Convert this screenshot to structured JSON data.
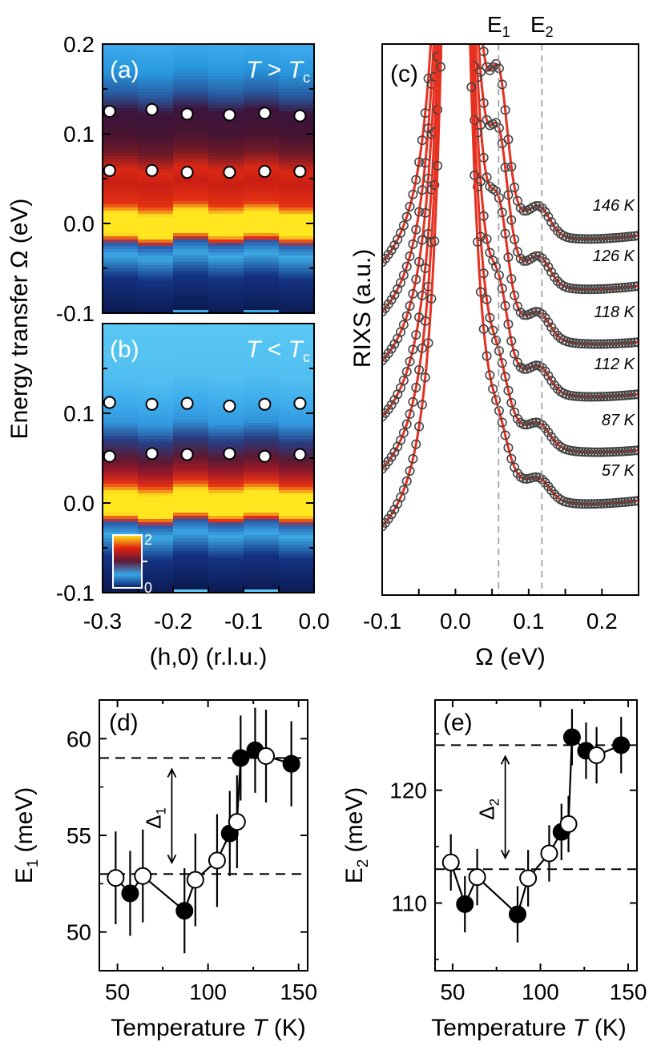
{
  "chart_data": [
    {
      "panel": "(a)",
      "type": "heatmap",
      "annotation": {
        "T": "T",
        "op": " > ",
        "Tc": "T",
        "sub": "c"
      },
      "x_ticks": [
        "-0.3",
        "-0.2",
        "-0.1",
        "0.0"
      ],
      "y_ticks": [
        "0.2",
        "0.1",
        "0.0",
        "-0.1"
      ],
      "xlim": [
        -0.3,
        0.0
      ],
      "ylim": [
        -0.1,
        0.2
      ],
      "column_centers": [
        -0.29,
        -0.23,
        -0.18,
        -0.12,
        -0.07,
        -0.02
      ],
      "points": [
        {
          "x": -0.29,
          "y": 0.125
        },
        {
          "x": -0.23,
          "y": 0.127
        },
        {
          "x": -0.18,
          "y": 0.122
        },
        {
          "x": -0.12,
          "y": 0.121
        },
        {
          "x": -0.07,
          "y": 0.123
        },
        {
          "x": -0.02,
          "y": 0.12
        },
        {
          "x": -0.29,
          "y": 0.059
        },
        {
          "x": -0.23,
          "y": 0.059
        },
        {
          "x": -0.18,
          "y": 0.057
        },
        {
          "x": -0.12,
          "y": 0.057
        },
        {
          "x": -0.07,
          "y": 0.058
        },
        {
          "x": -0.02,
          "y": 0.058
        }
      ]
    },
    {
      "panel": "(b)",
      "type": "heatmap",
      "annotation": {
        "T": "T",
        "op": " < ",
        "Tc": "T",
        "sub": "c"
      },
      "xlabel": "(h,0) (r.l.u.)",
      "x_ticks": [
        "-0.3",
        "-0.2",
        "-0.1",
        "0.0"
      ],
      "y_ticks": [
        "0.1",
        "0.0",
        "-0.1"
      ],
      "xlim": [
        -0.3,
        0.0
      ],
      "ylim": [
        -0.1,
        0.2
      ],
      "colorbar": {
        "max": "2",
        "min": "0"
      },
      "points": [
        {
          "x": -0.29,
          "y": 0.112
        },
        {
          "x": -0.23,
          "y": 0.11
        },
        {
          "x": -0.18,
          "y": 0.111
        },
        {
          "x": -0.12,
          "y": 0.108
        },
        {
          "x": -0.07,
          "y": 0.11
        },
        {
          "x": -0.02,
          "y": 0.111
        },
        {
          "x": -0.29,
          "y": 0.052
        },
        {
          "x": -0.23,
          "y": 0.055
        },
        {
          "x": -0.18,
          "y": 0.054
        },
        {
          "x": -0.12,
          "y": 0.055
        },
        {
          "x": -0.07,
          "y": 0.052
        },
        {
          "x": -0.02,
          "y": 0.054
        }
      ]
    },
    {
      "panel": "(c)",
      "type": "line",
      "xlabel": "Ω (eV)",
      "ylabel": "RIXS (a.u.)",
      "x_ticks": [
        "-0.1",
        "0.0",
        "0.1",
        "0.2"
      ],
      "xlim": [
        -0.1,
        0.25
      ],
      "top_labels": [
        {
          "main": "E",
          "sub": "1",
          "x": 0.059
        },
        {
          "main": "E",
          "sub": "2",
          "x": 0.118
        }
      ],
      "series": [
        {
          "name": "146 K"
        },
        {
          "name": "126 K"
        },
        {
          "name": "118 K"
        },
        {
          "name": "112 K"
        },
        {
          "name": "87 K"
        },
        {
          "name": "57 K"
        }
      ]
    },
    {
      "panel": "(d)",
      "type": "scatter",
      "xlabel": "Temperature T (K)",
      "ylabel": "E1 (meV)",
      "delta": {
        "main": "Δ",
        "sub": "1"
      },
      "x_ticks": [
        "50",
        "100",
        "150"
      ],
      "y_ticks": [
        "50",
        "55",
        "60"
      ],
      "xlim": [
        40,
        155
      ],
      "ylim": [
        48,
        62
      ],
      "hlines": [
        59.0,
        53.0
      ],
      "filled": [
        {
          "x": 57,
          "y": 52.0,
          "err": 2.2
        },
        {
          "x": 87,
          "y": 51.1,
          "err": 2.2
        },
        {
          "x": 112,
          "y": 55.1,
          "err": 2.2
        },
        {
          "x": 118,
          "y": 59.0,
          "err": 2.2
        },
        {
          "x": 126,
          "y": 59.4,
          "err": 2.2
        },
        {
          "x": 146,
          "y": 58.7,
          "err": 2.2
        }
      ],
      "open": [
        {
          "x": 49,
          "y": 52.8,
          "err": 2.4
        },
        {
          "x": 64,
          "y": 52.9,
          "err": 2.4
        },
        {
          "x": 93,
          "y": 52.7,
          "err": 2.4
        },
        {
          "x": 105,
          "y": 53.7,
          "err": 2.4
        },
        {
          "x": 116,
          "y": 55.7,
          "err": 2.4
        },
        {
          "x": 132,
          "y": 59.1,
          "err": 2.4
        }
      ],
      "line": [
        [
          49,
          52.8
        ],
        [
          57,
          52.0
        ],
        [
          64,
          52.9
        ],
        [
          87,
          51.1
        ],
        [
          93,
          52.7
        ],
        [
          105,
          53.7
        ],
        [
          112,
          55.1
        ],
        [
          116,
          55.7
        ],
        [
          118,
          59.0
        ],
        [
          126,
          59.4
        ],
        [
          132,
          59.1
        ],
        [
          146,
          58.7
        ]
      ]
    },
    {
      "panel": "(e)",
      "type": "scatter",
      "xlabel": "Temperature T (K)",
      "ylabel": "E2 (meV)",
      "delta": {
        "main": "Δ",
        "sub": "2"
      },
      "x_ticks": [
        "50",
        "100",
        "150"
      ],
      "y_ticks": [
        "110",
        "120"
      ],
      "xlim": [
        40,
        155
      ],
      "ylim": [
        104,
        128
      ],
      "hlines": [
        124.0,
        113.0
      ],
      "filled": [
        {
          "x": 57,
          "y": 109.9,
          "err": 2.5
        },
        {
          "x": 87,
          "y": 109.0,
          "err": 2.5
        },
        {
          "x": 112,
          "y": 116.3,
          "err": 2.5
        },
        {
          "x": 118,
          "y": 124.7,
          "err": 2.5
        },
        {
          "x": 126,
          "y": 123.5,
          "err": 2.5
        },
        {
          "x": 146,
          "y": 124.0,
          "err": 2.5
        }
      ],
      "open": [
        {
          "x": 49,
          "y": 113.6,
          "err": 2.5
        },
        {
          "x": 64,
          "y": 112.3,
          "err": 2.5
        },
        {
          "x": 93,
          "y": 112.2,
          "err": 2.5
        },
        {
          "x": 105,
          "y": 114.4,
          "err": 2.5
        },
        {
          "x": 116,
          "y": 117.0,
          "err": 2.5
        },
        {
          "x": 132,
          "y": 123.1,
          "err": 2.5
        }
      ],
      "line": [
        [
          49,
          113.6
        ],
        [
          57,
          109.9
        ],
        [
          64,
          112.3
        ],
        [
          87,
          109.0
        ],
        [
          93,
          112.2
        ],
        [
          105,
          114.4
        ],
        [
          112,
          116.3
        ],
        [
          116,
          117.0
        ],
        [
          118,
          124.7
        ],
        [
          126,
          123.5
        ],
        [
          132,
          123.1
        ],
        [
          146,
          124.0
        ]
      ]
    }
  ],
  "shared": {
    "ylabel_left": "Energy transfer Ω (eV)",
    "xlabel_temp_main": "Temperature ",
    "xlabel_temp_T": "T",
    "xlabel_temp_unit": " (K)"
  }
}
